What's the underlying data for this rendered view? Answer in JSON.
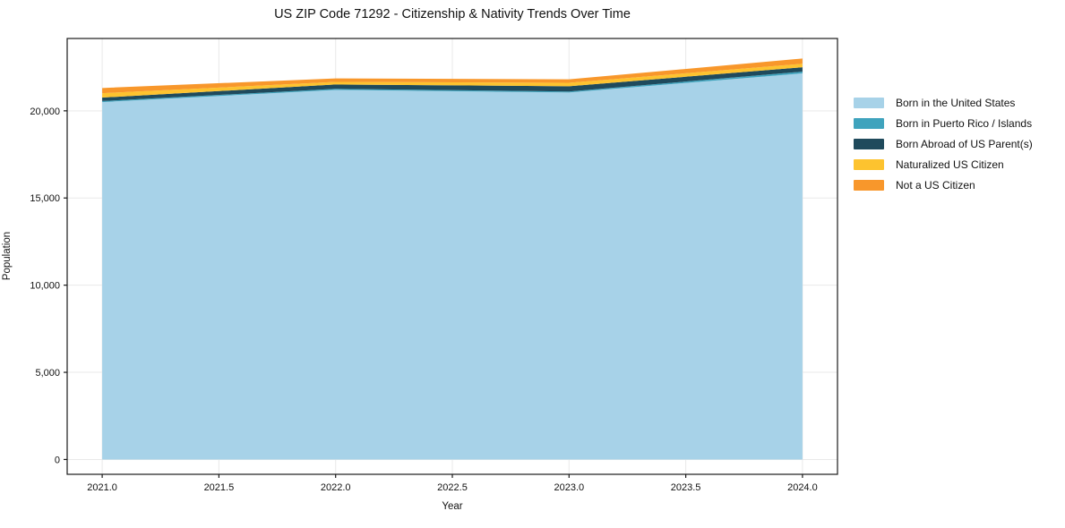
{
  "chart_data": {
    "type": "area",
    "stacked": true,
    "title": "US ZIP Code 71292 - Citizenship & Nativity Trends Over Time",
    "xlabel": "Year",
    "ylabel": "Population",
    "x": [
      2021,
      2022,
      2023,
      2024
    ],
    "series": [
      {
        "name": "Born in the United States",
        "color": "#a7d2e8",
        "values": [
          20500,
          21200,
          21050,
          22150
        ]
      },
      {
        "name": "Born in Puerto Rico / Islands",
        "color": "#3fa3bd",
        "values": [
          60,
          60,
          60,
          100
        ]
      },
      {
        "name": "Born Abroad of US Parent(s)",
        "color": "#1f4a5c",
        "values": [
          200,
          250,
          300,
          250
        ]
      },
      {
        "name": "Naturalized US Citizen",
        "color": "#fdc32f",
        "values": [
          250,
          150,
          200,
          200
        ]
      },
      {
        "name": "Not a US Citizen",
        "color": "#f8972b",
        "values": [
          300,
          200,
          200,
          300
        ]
      }
    ],
    "x_tick_values": [
      2021.0,
      2021.5,
      2022.0,
      2022.5,
      2023.0,
      2023.5,
      2024.0
    ],
    "x_tick_labels": [
      "2021.0",
      "2021.5",
      "2022.0",
      "2022.5",
      "2023.0",
      "2023.5",
      "2024.0"
    ],
    "y_tick_values": [
      0,
      5000,
      10000,
      15000,
      20000
    ],
    "y_tick_labels": [
      "0",
      "5,000",
      "10,000",
      "15,000",
      "20,000"
    ],
    "xlim": [
      2020.85,
      2024.15
    ],
    "ylim": [
      -850,
      24150
    ],
    "grid": true,
    "grid_color": "#e9e9e9",
    "axis_color": "#1a1a1a",
    "legend_position": "right-outside"
  }
}
